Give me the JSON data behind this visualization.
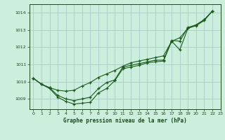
{
  "title": "Graphe pression niveau de la mer (hPa)",
  "background_color": "#cceedd",
  "grid_color": "#aacccc",
  "text_color": "#1a4a1a",
  "line_color": "#1a5c1a",
  "xlim": [
    -0.5,
    23
  ],
  "ylim": [
    1008.4,
    1014.5
  ],
  "yticks": [
    1009,
    1010,
    1011,
    1012,
    1013,
    1014
  ],
  "xticks": [
    0,
    1,
    2,
    3,
    4,
    5,
    6,
    7,
    8,
    9,
    10,
    11,
    12,
    13,
    14,
    15,
    16,
    17,
    18,
    19,
    20,
    21,
    22,
    23
  ],
  "series_low": [
    1010.2,
    1009.85,
    1009.6,
    1009.1,
    1008.85,
    1008.7,
    1008.75,
    1008.8,
    1009.35,
    1009.6,
    1010.05,
    1010.75,
    1010.85,
    1010.95,
    1011.1,
    1011.15,
    1011.2,
    1012.35,
    1011.85,
    1013.1,
    1013.25,
    1013.55,
    1014.1
  ],
  "series_mid": [
    1010.2,
    1009.85,
    1009.65,
    1009.2,
    1009.0,
    1008.9,
    1009.0,
    1009.1,
    1009.6,
    1009.95,
    1010.1,
    1010.85,
    1010.95,
    1011.05,
    1011.15,
    1011.25,
    1011.25,
    1012.4,
    1012.35,
    1013.15,
    1013.3,
    1013.6,
    1014.1
  ],
  "series_high": [
    1010.2,
    1009.85,
    1009.65,
    1009.5,
    1009.45,
    1009.5,
    1009.75,
    1009.95,
    1010.25,
    1010.45,
    1010.65,
    1010.9,
    1011.1,
    1011.2,
    1011.3,
    1011.4,
    1011.5,
    1012.35,
    1012.55,
    1013.1,
    1013.3,
    1013.6,
    1014.1
  ]
}
